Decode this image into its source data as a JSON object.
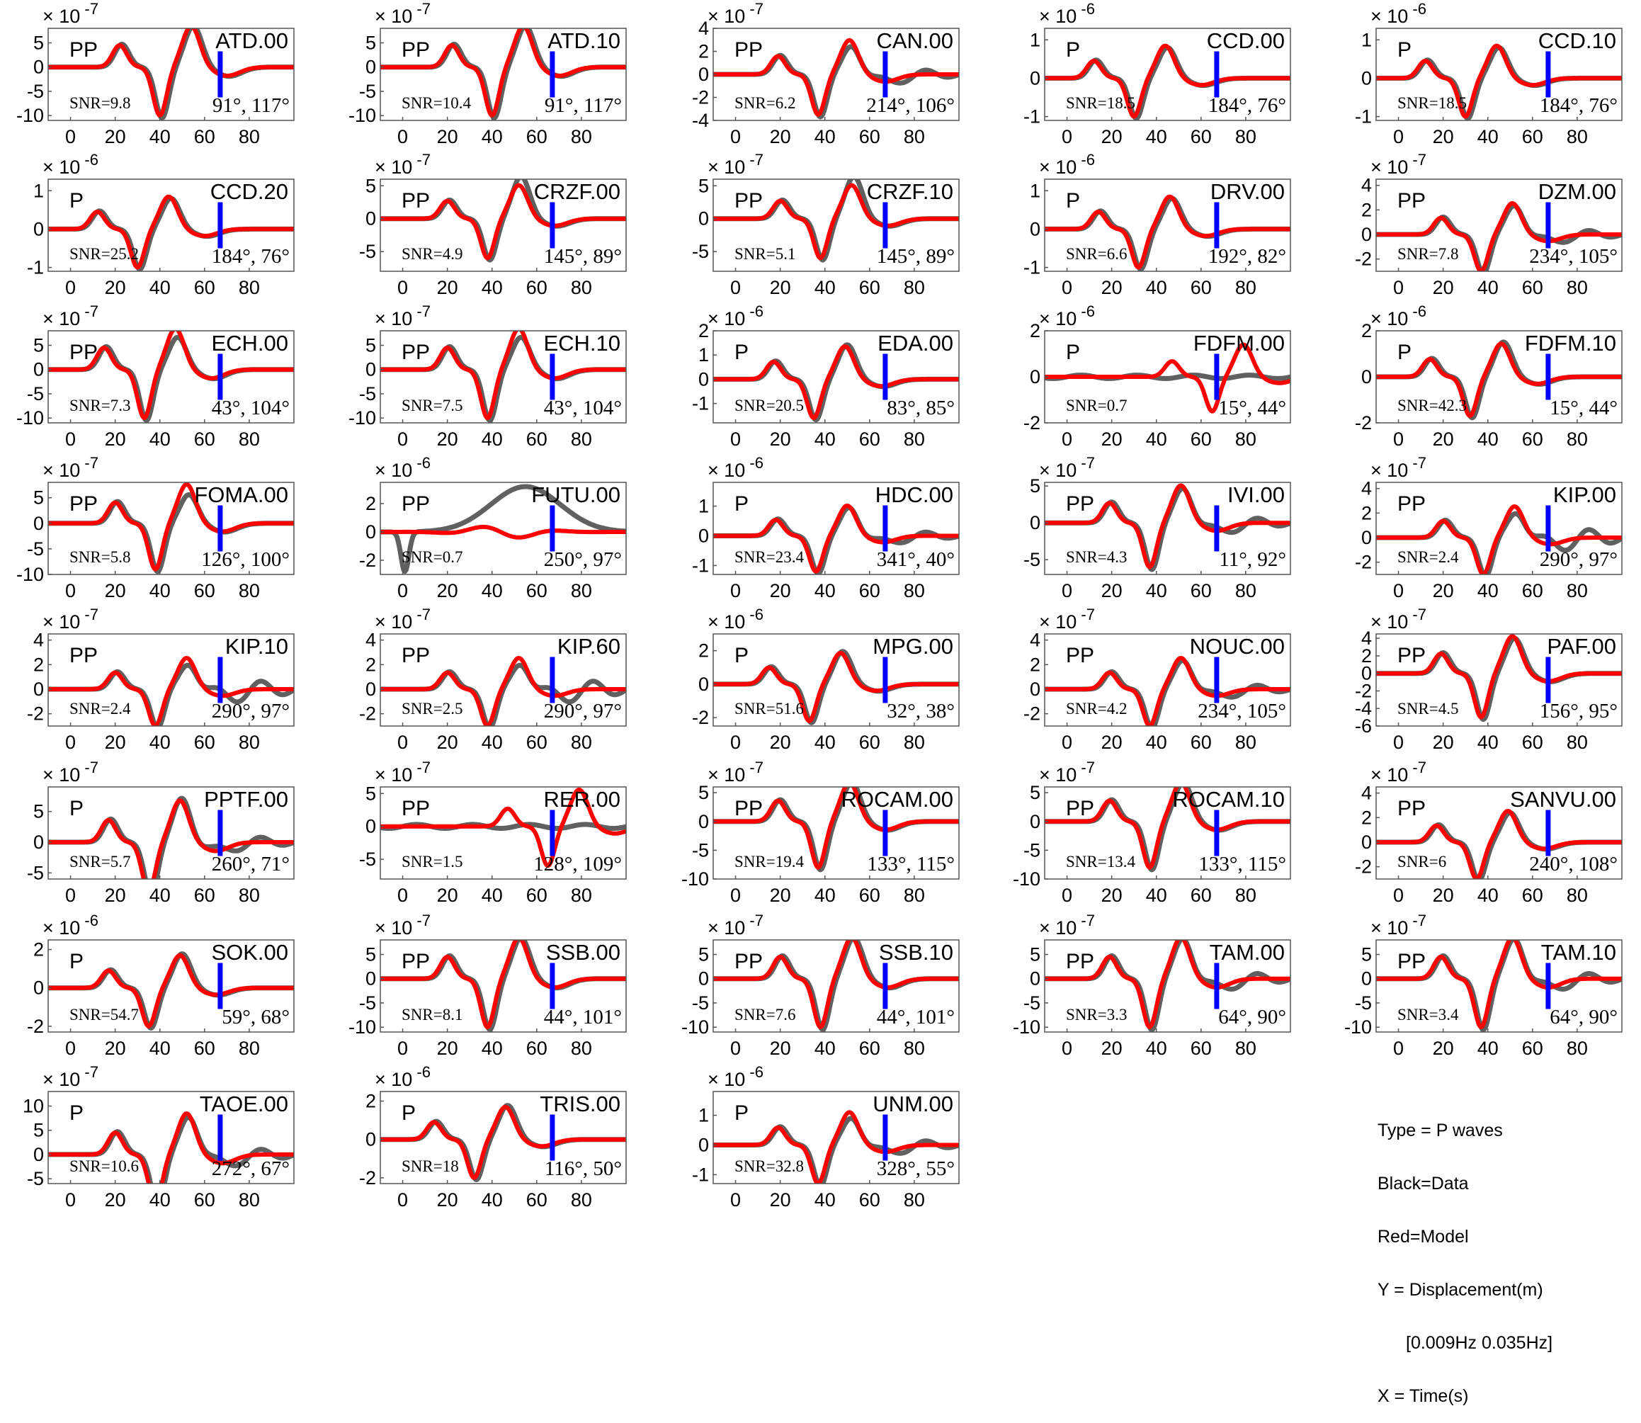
{
  "figure": {
    "colors": {
      "data": "#606060",
      "model": "#ff0000",
      "marker": "#0000ff",
      "axes": "#555555"
    },
    "x_ticks": [
      0,
      20,
      40,
      60,
      80
    ],
    "xlim": [
      -10,
      100
    ],
    "marker_x": 67
  },
  "legend": {
    "type": "Type = P waves",
    "black": "Black=Data",
    "red": "Red=Model",
    "y_label": "Y = Displacement(m)",
    "band": "[0.009Hz 0.035Hz]",
    "x_label": "X = Time(s)"
  },
  "chart_data": [
    {
      "type": "line",
      "station": "ATD.00",
      "phase": "PP",
      "snr": "SNR=9.8",
      "angles": "91°, 117°",
      "exp": "-7",
      "yticks": [
        5,
        0,
        -5,
        -10
      ],
      "ylim": [
        -11,
        8
      ],
      "arrival": 40,
      "amp": 10,
      "fit": 0.95,
      "noise": 0
    },
    {
      "type": "line",
      "station": "ATD.10",
      "phase": "PP",
      "snr": "SNR=10.4",
      "angles": "91°, 117°",
      "exp": "-7",
      "yticks": [
        5,
        0,
        -5,
        -10
      ],
      "ylim": [
        -11,
        8
      ],
      "arrival": 40,
      "amp": 10,
      "fit": 0.95,
      "noise": 0
    },
    {
      "type": "line",
      "station": "CAN.00",
      "phase": "PP",
      "snr": "SNR=6.2",
      "angles": "214°, 106°",
      "exp": "-7",
      "yticks": [
        4,
        2,
        0,
        -2,
        -4
      ],
      "ylim": [
        -4,
        4
      ],
      "arrival": 37,
      "amp": 3.5,
      "fit": 0.8,
      "noise": 1
    },
    {
      "type": "line",
      "station": "CCD.00",
      "phase": "P",
      "snr": "SNR=18.5",
      "angles": "184°, 76°",
      "exp": "-6",
      "yticks": [
        1,
        0,
        -1
      ],
      "ylim": [
        -1.1,
        1.3
      ],
      "arrival": 30,
      "amp": 1,
      "fit": 0.9,
      "noise": 0
    },
    {
      "type": "line",
      "station": "CCD.10",
      "phase": "P",
      "snr": "SNR=18.5",
      "angles": "184°, 76°",
      "exp": "-6",
      "yticks": [
        1,
        0,
        -1
      ],
      "ylim": [
        -1.1,
        1.3
      ],
      "arrival": 30,
      "amp": 1,
      "fit": 0.9,
      "noise": 0
    },
    {
      "type": "line",
      "station": "CCD.20",
      "phase": "P",
      "snr": "SNR=25.2",
      "angles": "184°, 76°",
      "exp": "-6",
      "yticks": [
        1,
        0,
        -1
      ],
      "ylim": [
        -1.1,
        1.3
      ],
      "arrival": 30,
      "amp": 1,
      "fit": 0.9,
      "noise": 0
    },
    {
      "type": "line",
      "station": "CRZF.00",
      "phase": "PP",
      "snr": "SNR=4.9",
      "angles": "145°, 89°",
      "exp": "-7",
      "yticks": [
        5,
        0,
        -5
      ],
      "ylim": [
        -8,
        6
      ],
      "arrival": 38,
      "amp": 6,
      "fit": 1.2,
      "noise": 0
    },
    {
      "type": "line",
      "station": "CRZF.10",
      "phase": "PP",
      "snr": "SNR=5.1",
      "angles": "145°, 89°",
      "exp": "-7",
      "yticks": [
        5,
        0,
        -5
      ],
      "ylim": [
        -8,
        6
      ],
      "arrival": 38,
      "amp": 6,
      "fit": 1.2,
      "noise": 0
    },
    {
      "type": "line",
      "station": "DRV.00",
      "phase": "P",
      "snr": "SNR=6.6",
      "angles": "192°, 82°",
      "exp": "-6",
      "yticks": [
        1,
        0,
        -1
      ],
      "ylim": [
        -1.1,
        1.3
      ],
      "arrival": 32,
      "amp": 1,
      "fit": 0.9,
      "noise": 0
    },
    {
      "type": "line",
      "station": "DZM.00",
      "phase": "PP",
      "snr": "SNR=7.8",
      "angles": "234°, 105°",
      "exp": "-7",
      "yticks": [
        4,
        2,
        0,
        -2
      ],
      "ylim": [
        -3,
        4.5
      ],
      "arrival": 37,
      "amp": 3,
      "fit": 0.9,
      "noise": 1
    },
    {
      "type": "line",
      "station": "ECH.00",
      "phase": "PP",
      "snr": "SNR=7.3",
      "angles": "43°, 104°",
      "exp": "-7",
      "yticks": [
        5,
        0,
        -5,
        -10
      ],
      "ylim": [
        -11,
        8
      ],
      "arrival": 33,
      "amp": 10,
      "fit": 0.75,
      "noise": 0
    },
    {
      "type": "line",
      "station": "ECH.10",
      "phase": "PP",
      "snr": "SNR=7.5",
      "angles": "43°, 104°",
      "exp": "-7",
      "yticks": [
        5,
        0,
        -5,
        -10
      ],
      "ylim": [
        -11,
        8
      ],
      "arrival": 38,
      "amp": 10,
      "fit": 0.75,
      "noise": 0
    },
    {
      "type": "line",
      "station": "EDA.00",
      "phase": "P",
      "snr": "SNR=20.5",
      "angles": "83°, 85°",
      "exp": "-6",
      "yticks": [
        2,
        1,
        0,
        -1
      ],
      "ylim": [
        -1.8,
        2
      ],
      "arrival": 35,
      "amp": 1.6,
      "fit": 1,
      "noise": 0
    },
    {
      "type": "line",
      "station": "FDFM.00",
      "phase": "P",
      "snr": "SNR=0.7",
      "angles": "15°, 44°",
      "exp": "-6",
      "yticks": [
        2,
        0,
        -2
      ],
      "ylim": [
        -2,
        2
      ],
      "arrival": 65,
      "amp": 1.5,
      "fit": 1,
      "noise": 0,
      "flatdata": true
    },
    {
      "type": "line",
      "station": "FDFM.10",
      "phase": "P",
      "snr": "SNR=42.3",
      "angles": "15°, 44°",
      "exp": "-6",
      "yticks": [
        2,
        0,
        -2
      ],
      "ylim": [
        -2,
        2
      ],
      "arrival": 32,
      "amp": 1.7,
      "fit": 1,
      "noise": 0
    },
    {
      "type": "line",
      "station": "FOMA.00",
      "phase": "PP",
      "snr": "SNR=5.8",
      "angles": "126°, 100°",
      "exp": "-7",
      "yticks": [
        5,
        0,
        -5,
        -10
      ],
      "ylim": [
        -10,
        8
      ],
      "arrival": 38,
      "amp": 9,
      "fit": 0.7,
      "noise": 0
    },
    {
      "type": "line",
      "station": "FUTU.00",
      "phase": "PP",
      "snr": "SNR=0.7",
      "angles": "250°, 97°",
      "exp": "-6",
      "yticks": [
        2,
        0,
        -2
      ],
      "ylim": [
        -3,
        3.5
      ],
      "arrival": 50,
      "amp": 0.3,
      "fit": 1,
      "noise": 0,
      "futu": true
    },
    {
      "type": "line",
      "station": "HDC.00",
      "phase": "P",
      "snr": "SNR=23.4",
      "angles": "341°, 40°",
      "exp": "-6",
      "yticks": [
        1,
        0,
        -1
      ],
      "ylim": [
        -1.3,
        1.8
      ],
      "arrival": 36,
      "amp": 1.2,
      "fit": 0.9,
      "noise": 1
    },
    {
      "type": "line",
      "station": "IVI.00",
      "phase": "PP",
      "snr": "SNR=4.3",
      "angles": "11°, 92°",
      "exp": "-7",
      "yticks": [
        5,
        0,
        -5
      ],
      "ylim": [
        -7,
        5.5
      ],
      "arrival": 37,
      "amp": 6,
      "fit": 0.9,
      "noise": 1
    },
    {
      "type": "line",
      "station": "KIP.00",
      "phase": "PP",
      "snr": "SNR=2.4",
      "angles": "290°, 97°",
      "exp": "-7",
      "yticks": [
        4,
        2,
        0,
        -2
      ],
      "ylim": [
        -3,
        4.5
      ],
      "arrival": 38,
      "amp": 3,
      "fit": 0.8,
      "noise": 2
    },
    {
      "type": "line",
      "station": "KIP.10",
      "phase": "PP",
      "snr": "SNR=2.4",
      "angles": "290°, 97°",
      "exp": "-7",
      "yticks": [
        4,
        2,
        0,
        -2
      ],
      "ylim": [
        -3,
        4.5
      ],
      "arrival": 38,
      "amp": 3,
      "fit": 0.8,
      "noise": 2
    },
    {
      "type": "line",
      "station": "KIP.60",
      "phase": "PP",
      "snr": "SNR=2.5",
      "angles": "290°, 97°",
      "exp": "-7",
      "yticks": [
        4,
        2,
        0,
        -2
      ],
      "ylim": [
        -3,
        4.5
      ],
      "arrival": 38,
      "amp": 3,
      "fit": 0.8,
      "noise": 2
    },
    {
      "type": "line",
      "station": "MPG.00",
      "phase": "P",
      "snr": "SNR=51.6",
      "angles": "32°, 38°",
      "exp": "-6",
      "yticks": [
        2,
        0,
        -2
      ],
      "ylim": [
        -2.5,
        3
      ],
      "arrival": 33,
      "amp": 2.2,
      "fit": 1,
      "noise": 0
    },
    {
      "type": "line",
      "station": "NOUC.00",
      "phase": "PP",
      "snr": "SNR=4.2",
      "angles": "234°, 105°",
      "exp": "-7",
      "yticks": [
        4,
        2,
        0,
        -2
      ],
      "ylim": [
        -3,
        4.5
      ],
      "arrival": 37,
      "amp": 3,
      "fit": 0.9,
      "noise": 1
    },
    {
      "type": "line",
      "station": "PAF.00",
      "phase": "PP",
      "snr": "SNR=4.5",
      "angles": "156°, 95°",
      "exp": "-7",
      "yticks": [
        4,
        2,
        0,
        -2,
        -4,
        -6
      ],
      "ylim": [
        -6,
        4.5
      ],
      "arrival": 37,
      "amp": 5,
      "fit": 0.9,
      "noise": 0
    },
    {
      "type": "line",
      "station": "PPTF.00",
      "phase": "P",
      "snr": "SNR=5.7",
      "angles": "260°, 71°",
      "exp": "-7",
      "yticks": [
        5,
        0,
        -5
      ],
      "ylim": [
        -6,
        9
      ],
      "arrival": 35,
      "amp": 8,
      "fit": 1,
      "noise": 1
    },
    {
      "type": "line",
      "station": "RER.00",
      "phase": "PP",
      "snr": "SNR=1.5",
      "angles": "128°, 109°",
      "exp": "-7",
      "yticks": [
        5,
        0,
        -5
      ],
      "ylim": [
        -8,
        6
      ],
      "arrival": 65,
      "amp": 6,
      "fit": 1,
      "noise": 0,
      "flatdata": true
    },
    {
      "type": "line",
      "station": "ROCAM.00",
      "phase": "PP",
      "snr": "SNR=19.4",
      "angles": "133°, 115°",
      "exp": "-7",
      "yticks": [
        5,
        0,
        -5,
        -10
      ],
      "ylim": [
        -10,
        6
      ],
      "arrival": 37,
      "amp": 8,
      "fit": 0.95,
      "noise": 0
    },
    {
      "type": "line",
      "station": "ROCAM.10",
      "phase": "PP",
      "snr": "SNR=13.4",
      "angles": "133°, 115°",
      "exp": "-7",
      "yticks": [
        5,
        0,
        -5,
        -10
      ],
      "ylim": [
        -10,
        6
      ],
      "arrival": 37,
      "amp": 8,
      "fit": 0.95,
      "noise": 0
    },
    {
      "type": "line",
      "station": "SANVU.00",
      "phase": "PP",
      "snr": "SNR=6",
      "angles": "240°, 108°",
      "exp": "-7",
      "yticks": [
        4,
        2,
        0,
        -2
      ],
      "ylim": [
        -3,
        4.5
      ],
      "arrival": 35,
      "amp": 3,
      "fit": 0.9,
      "noise": 0
    },
    {
      "type": "line",
      "station": "SOK.00",
      "phase": "P",
      "snr": "SNR=54.7",
      "angles": "59°, 68°",
      "exp": "-6",
      "yticks": [
        2,
        0,
        -2
      ],
      "ylim": [
        -2.3,
        2.5
      ],
      "arrival": 35,
      "amp": 2,
      "fit": 1,
      "noise": 0
    },
    {
      "type": "line",
      "station": "SSB.00",
      "phase": "PP",
      "snr": "SNR=8.1",
      "angles": "44°, 101°",
      "exp": "-7",
      "yticks": [
        5,
        0,
        -5,
        -10
      ],
      "ylim": [
        -11,
        8
      ],
      "arrival": 38,
      "amp": 10,
      "fit": 0.95,
      "noise": 0
    },
    {
      "type": "line",
      "station": "SSB.10",
      "phase": "PP",
      "snr": "SNR=7.6",
      "angles": "44°, 101°",
      "exp": "-7",
      "yticks": [
        5,
        0,
        -5,
        -10
      ],
      "ylim": [
        -11,
        8
      ],
      "arrival": 38,
      "amp": 10,
      "fit": 0.95,
      "noise": 0
    },
    {
      "type": "line",
      "station": "TAM.00",
      "phase": "PP",
      "snr": "SNR=3.3",
      "angles": "64°, 90°",
      "exp": "-7",
      "yticks": [
        5,
        0,
        -5,
        -10
      ],
      "ylim": [
        -11,
        8
      ],
      "arrival": 37,
      "amp": 10,
      "fit": 0.95,
      "noise": 1
    },
    {
      "type": "line",
      "station": "TAM.10",
      "phase": "PP",
      "snr": "SNR=3.4",
      "angles": "64°, 90°",
      "exp": "-7",
      "yticks": [
        5,
        0,
        -5,
        -10
      ],
      "ylim": [
        -11,
        8
      ],
      "arrival": 37,
      "amp": 10,
      "fit": 0.95,
      "noise": 1
    },
    {
      "type": "line",
      "station": "TAOE.00",
      "phase": "P",
      "snr": "SNR=10.6",
      "angles": "272°, 67°",
      "exp": "-7",
      "yticks": [
        10,
        5,
        0,
        -5
      ],
      "ylim": [
        -6,
        13
      ],
      "arrival": 38,
      "amp": 10,
      "fit": 0.9,
      "noise": 1
    },
    {
      "type": "line",
      "station": "TRIS.00",
      "phase": "P",
      "snr": "SNR=18",
      "angles": "116°, 50°",
      "exp": "-6",
      "yticks": [
        2,
        0,
        -2
      ],
      "ylim": [
        -2.3,
        2.5
      ],
      "arrival": 32,
      "amp": 2,
      "fit": 1,
      "noise": 0
    },
    {
      "type": "line",
      "station": "UNM.00",
      "phase": "P",
      "snr": "SNR=32.8",
      "angles": "328°, 55°",
      "exp": "-6",
      "yticks": [
        1,
        0,
        -1
      ],
      "ylim": [
        -1.3,
        1.8
      ],
      "arrival": 37,
      "amp": 1.3,
      "fit": 0.8,
      "noise": 1
    }
  ]
}
